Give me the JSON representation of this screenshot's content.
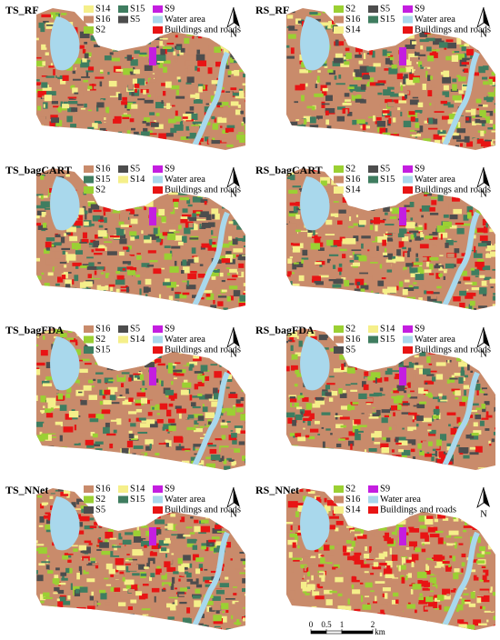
{
  "panels": [
    {
      "title": "TS_RF",
      "north": "N",
      "legend": [
        [
          {
            "label": "S14",
            "color": "#f5ef8a"
          },
          {
            "label": "S15",
            "color": "#3f7d60"
          },
          {
            "label": "S9",
            "color": "#c41ee0"
          }
        ],
        [
          {
            "label": "S16",
            "color": "#c98b6b"
          },
          {
            "label": "S5",
            "color": "#4d4d4d"
          },
          {
            "label": "Water area",
            "color": "#a9d8ec"
          }
        ],
        [
          {
            "label": "S2",
            "color": "#9bd033"
          },
          {
            "label": "Buildings and roads",
            "color": "#e81414"
          }
        ]
      ]
    },
    {
      "title": "RS_RF",
      "north": "N",
      "legend": [
        [
          {
            "label": "S2",
            "color": "#9bd033"
          },
          {
            "label": "S5",
            "color": "#4d4d4d"
          },
          {
            "label": "S9",
            "color": "#c41ee0"
          }
        ],
        [
          {
            "label": "S16",
            "color": "#c98b6b"
          },
          {
            "label": "S15",
            "color": "#3f7d60"
          },
          {
            "label": "Water area",
            "color": "#a9d8ec"
          }
        ],
        [
          {
            "label": "S14",
            "color": "#f5ef8a"
          },
          {
            "label": "Buildings and roads",
            "color": "#e81414"
          }
        ]
      ]
    },
    {
      "title": "TS_bagCART",
      "north": "N",
      "legend": [
        [
          {
            "label": "S16",
            "color": "#c98b6b"
          },
          {
            "label": "S5",
            "color": "#4d4d4d"
          },
          {
            "label": "S9",
            "color": "#c41ee0"
          }
        ],
        [
          {
            "label": "S15",
            "color": "#3f7d60"
          },
          {
            "label": "S14",
            "color": "#f5ef8a"
          },
          {
            "label": "Water area",
            "color": "#a9d8ec"
          }
        ],
        [
          {
            "label": "S2",
            "color": "#9bd033"
          },
          {
            "label": "Buildings and roads",
            "color": "#e81414"
          }
        ]
      ]
    },
    {
      "title": "RS_bagCART",
      "north": "N",
      "legend": [
        [
          {
            "label": "S2",
            "color": "#9bd033"
          },
          {
            "label": "S5",
            "color": "#4d4d4d"
          },
          {
            "label": "S9",
            "color": "#c41ee0"
          }
        ],
        [
          {
            "label": "S16",
            "color": "#c98b6b"
          },
          {
            "label": "S15",
            "color": "#3f7d60"
          },
          {
            "label": "Water area",
            "color": "#a9d8ec"
          }
        ],
        [
          {
            "label": "S14",
            "color": "#f5ef8a"
          },
          {
            "label": "Buildings and roads",
            "color": "#e81414"
          }
        ]
      ]
    },
    {
      "title": "TS_bagFDA",
      "north": "N",
      "legend": [
        [
          {
            "label": "S16",
            "color": "#c98b6b"
          },
          {
            "label": "S5",
            "color": "#4d4d4d"
          },
          {
            "label": "S9",
            "color": "#c41ee0"
          }
        ],
        [
          {
            "label": "S2",
            "color": "#9bd033"
          },
          {
            "label": "S14",
            "color": "#f5ef8a"
          },
          {
            "label": "Water area",
            "color": "#a9d8ec"
          }
        ],
        [
          {
            "label": "S15",
            "color": "#3f7d60"
          },
          {
            "label": "Buildings and roads",
            "color": "#e81414"
          }
        ]
      ]
    },
    {
      "title": "RS_bagFDA",
      "north": "N",
      "legend": [
        [
          {
            "label": "S2",
            "color": "#9bd033"
          },
          {
            "label": "S14",
            "color": "#f5ef8a"
          },
          {
            "label": "S9",
            "color": "#c41ee0"
          }
        ],
        [
          {
            "label": "S16",
            "color": "#c98b6b"
          },
          {
            "label": "S15",
            "color": "#3f7d60"
          },
          {
            "label": "Water area",
            "color": "#a9d8ec"
          }
        ],
        [
          {
            "label": "S5",
            "color": "#4d4d4d"
          },
          {
            "label": "Buildings and roads",
            "color": "#e81414"
          }
        ]
      ]
    },
    {
      "title": "TS_NNet",
      "north": "N",
      "legend": [
        [
          {
            "label": "S16",
            "color": "#c98b6b"
          },
          {
            "label": "S14",
            "color": "#f5ef8a"
          },
          {
            "label": "S9",
            "color": "#c41ee0"
          }
        ],
        [
          {
            "label": "S2",
            "color": "#9bd033"
          },
          {
            "label": "S15",
            "color": "#3f7d60"
          },
          {
            "label": "Water area",
            "color": "#a9d8ec"
          }
        ],
        [
          {
            "label": "S5",
            "color": "#4d4d4d"
          },
          {
            "label": "Buildings and roads",
            "color": "#e81414"
          }
        ]
      ]
    },
    {
      "title": "RS_NNet",
      "north": "N",
      "legend": [
        [
          {
            "label": "S2",
            "color": "#9bd033"
          },
          {
            "label": "S9",
            "color": "#c41ee0"
          }
        ],
        [
          {
            "label": "S16",
            "color": "#c98b6b"
          },
          {
            "label": "Water area",
            "color": "#a9d8ec"
          }
        ],
        [
          {
            "label": "S14",
            "color": "#f5ef8a"
          },
          {
            "label": "Buildings and roads",
            "color": "#e81414"
          }
        ]
      ]
    }
  ],
  "scale_bar": {
    "ticks": [
      0,
      0.5,
      1,
      2
    ],
    "unit": "km"
  }
}
